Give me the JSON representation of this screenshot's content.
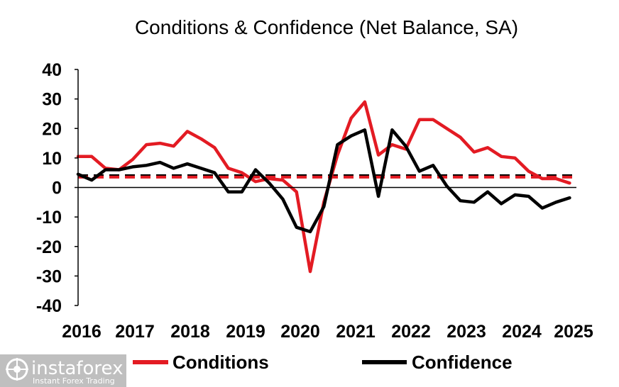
{
  "chart_data": {
    "type": "line",
    "title": "Conditions & Confidence (Net Balance, SA)",
    "xlabel": "",
    "ylabel": "",
    "ylim": [
      -40,
      40
    ],
    "yticks": [
      40,
      30,
      20,
      10,
      0,
      -10,
      -20,
      -30,
      -40
    ],
    "xlim": [
      2016,
      2025.125
    ],
    "x_tick_labels": [
      "2016",
      "2017",
      "2018",
      "2019",
      "2020",
      "2021",
      "2022",
      "2023",
      "2024",
      "2025"
    ],
    "legend_position": "bottom",
    "grid": false,
    "series": [
      {
        "name": "Conditions",
        "color": "#e31b23",
        "style": "solid",
        "x": [
          2016.0,
          2016.25,
          2016.5,
          2016.75,
          2017.0,
          2017.25,
          2017.5,
          2017.75,
          2018.0,
          2018.25,
          2018.5,
          2018.75,
          2019.0,
          2019.25,
          2019.5,
          2019.75,
          2020.0,
          2020.25,
          2020.5,
          2020.75,
          2021.0,
          2021.25,
          2021.5,
          2021.75,
          2022.0,
          2022.25,
          2022.5,
          2022.75,
          2023.0,
          2023.25,
          2023.5,
          2023.75,
          2024.0,
          2024.25,
          2024.5,
          2024.75,
          2025.0
        ],
        "y": [
          10.5,
          10.5,
          6.5,
          6.0,
          9.5,
          14.5,
          15.0,
          14.0,
          19.0,
          16.5,
          13.5,
          6.5,
          5.0,
          2.0,
          3.0,
          2.5,
          -1.5,
          -28.5,
          -5.0,
          11.0,
          23.5,
          29.0,
          11.0,
          14.5,
          13.0,
          23.0,
          23.0,
          20.0,
          17.0,
          12.0,
          13.5,
          10.5,
          10.0,
          5.5,
          3.0,
          3.0,
          1.5
        ]
      },
      {
        "name": "Confidence",
        "color": "#000000",
        "style": "solid",
        "x": [
          2016.0,
          2016.25,
          2016.5,
          2016.75,
          2017.0,
          2017.25,
          2017.5,
          2017.75,
          2018.0,
          2018.25,
          2018.5,
          2018.75,
          2019.0,
          2019.25,
          2019.5,
          2019.75,
          2020.0,
          2020.25,
          2020.5,
          2020.75,
          2021.0,
          2021.25,
          2021.5,
          2021.75,
          2022.0,
          2022.25,
          2022.5,
          2022.75,
          2023.0,
          2023.25,
          2023.5,
          2023.75,
          2024.0,
          2024.25,
          2024.5,
          2024.75,
          2025.0
        ],
        "y": [
          4.5,
          2.5,
          6.0,
          6.0,
          7.0,
          7.5,
          8.5,
          6.5,
          8.0,
          6.5,
          5.0,
          -1.5,
          -1.5,
          6.0,
          1.5,
          -4.0,
          -13.5,
          -15.0,
          -6.5,
          14.5,
          17.5,
          19.5,
          -3.0,
          19.5,
          14.0,
          5.5,
          7.5,
          0.5,
          -4.5,
          -5.0,
          -1.5,
          -5.5,
          -2.5,
          -3.0,
          -7.0,
          -5.0,
          -3.5
        ]
      }
    ],
    "reference_lines": [
      {
        "y": 4.0,
        "color": "#000000",
        "style": "dashed"
      },
      {
        "y": 3.5,
        "color": "#e31b23",
        "style": "dashed"
      }
    ]
  },
  "watermark": {
    "brand": "instaforex",
    "tagline": "Instant Forex Trading",
    "icon": "instaforex-logo-icon"
  }
}
